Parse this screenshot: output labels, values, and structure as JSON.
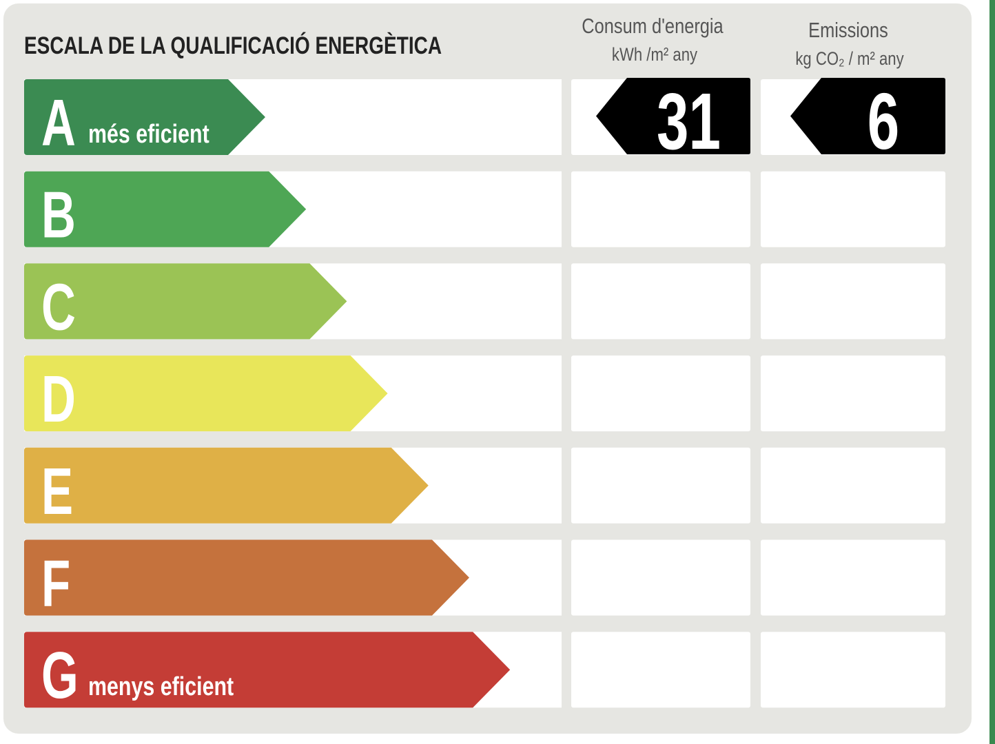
{
  "title": "ESCALA DE LA QUALIFICACIÓ ENERGÈTICA",
  "columns": [
    {
      "heading": "Consum d'energia",
      "unit": "kWh /m² any"
    },
    {
      "heading": "Emissions",
      "unit": "kg CO₂ / m² any"
    }
  ],
  "rows": [
    {
      "letter": "A",
      "label": "més eficient",
      "color": "#3b8b52",
      "consumption": 31,
      "emissions": 6
    },
    {
      "letter": "B",
      "color": "#4ea655"
    },
    {
      "letter": "C",
      "color": "#9bc355"
    },
    {
      "letter": "D",
      "color": "#e8e65a"
    },
    {
      "letter": "E",
      "color": "#dfb046"
    },
    {
      "letter": "F",
      "color": "#c5723d"
    },
    {
      "letter": "G",
      "label": "menys eficient",
      "color": "#c43d36"
    }
  ]
}
